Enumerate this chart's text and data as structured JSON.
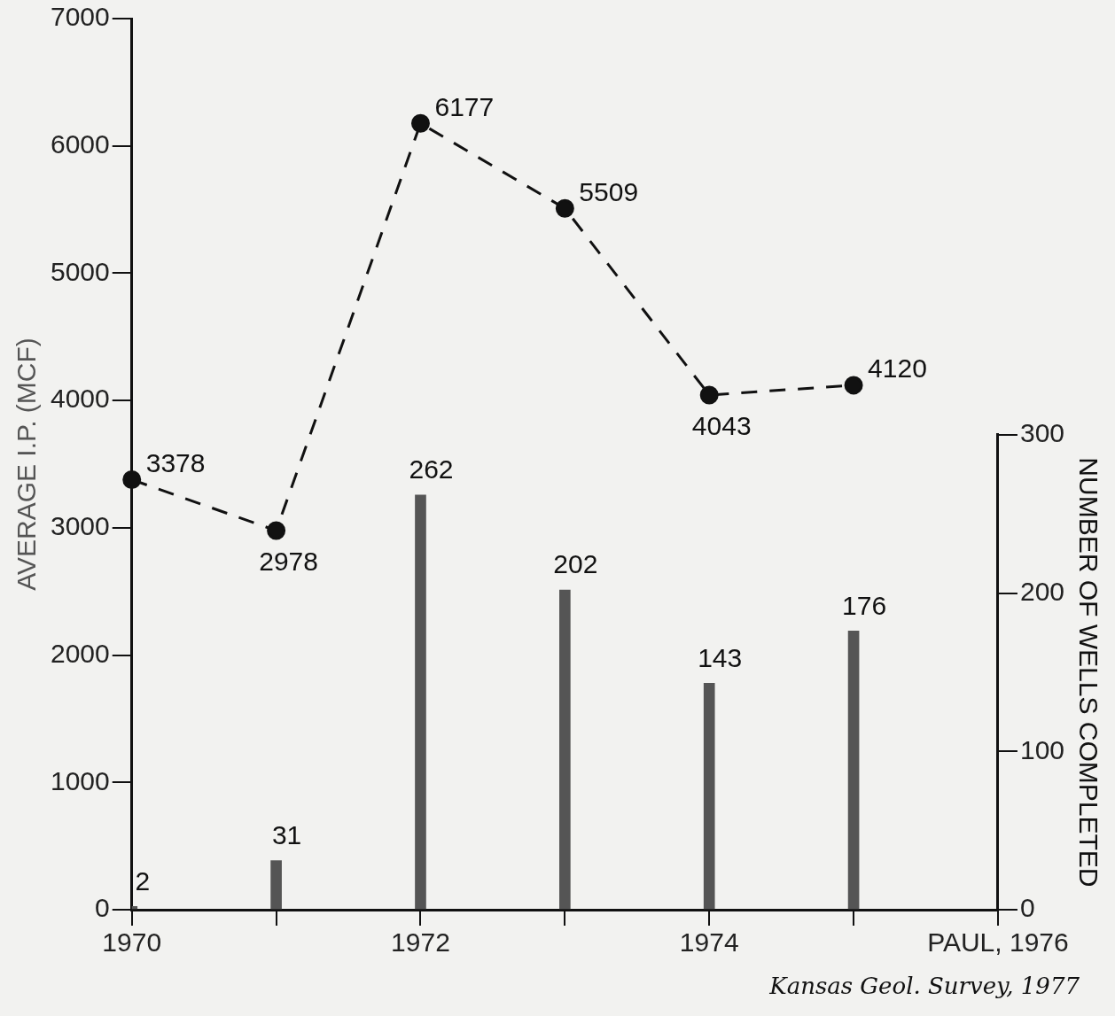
{
  "chart_data": {
    "type": "line",
    "xlabel": null,
    "ylabel": "AVERAGE I.P. (MCF)",
    "y2label": "NUMBER OF WELLS COMPLETED",
    "x": [
      1970,
      1971,
      1972,
      1973,
      1974,
      1975
    ],
    "series": [
      {
        "color": "#111111",
        "values": [
          3378,
          2978,
          6177,
          5509,
          4043,
          4120
        ],
        "marker": "circle",
        "line_style": "dashed"
      },
      {
        "type": "bar",
        "axis": "y2",
        "color": "#555555",
        "values": [
          2,
          31,
          262,
          202,
          143,
          176
        ]
      }
    ],
    "xlim": [
      1970,
      1976
    ],
    "xticks": [
      1970,
      {
        "value": 1971,
        "label": null
      },
      1972,
      {
        "value": 1973,
        "label": null
      },
      1974,
      {
        "value": 1975,
        "label": null
      },
      {
        "value": 1976,
        "label": "PAUL, 1976"
      }
    ],
    "ylim": [
      0,
      7000
    ],
    "yticks": [
      0,
      1000,
      2000,
      3000,
      4000,
      5000,
      6000,
      7000
    ],
    "y2lim": [
      0,
      300
    ],
    "y2ticks": [
      0,
      100,
      200,
      300
    ],
    "data_labels": true,
    "grid": false,
    "legend": false,
    "annotations": [
      "Kansas Geol. Survey, 1977"
    ]
  }
}
